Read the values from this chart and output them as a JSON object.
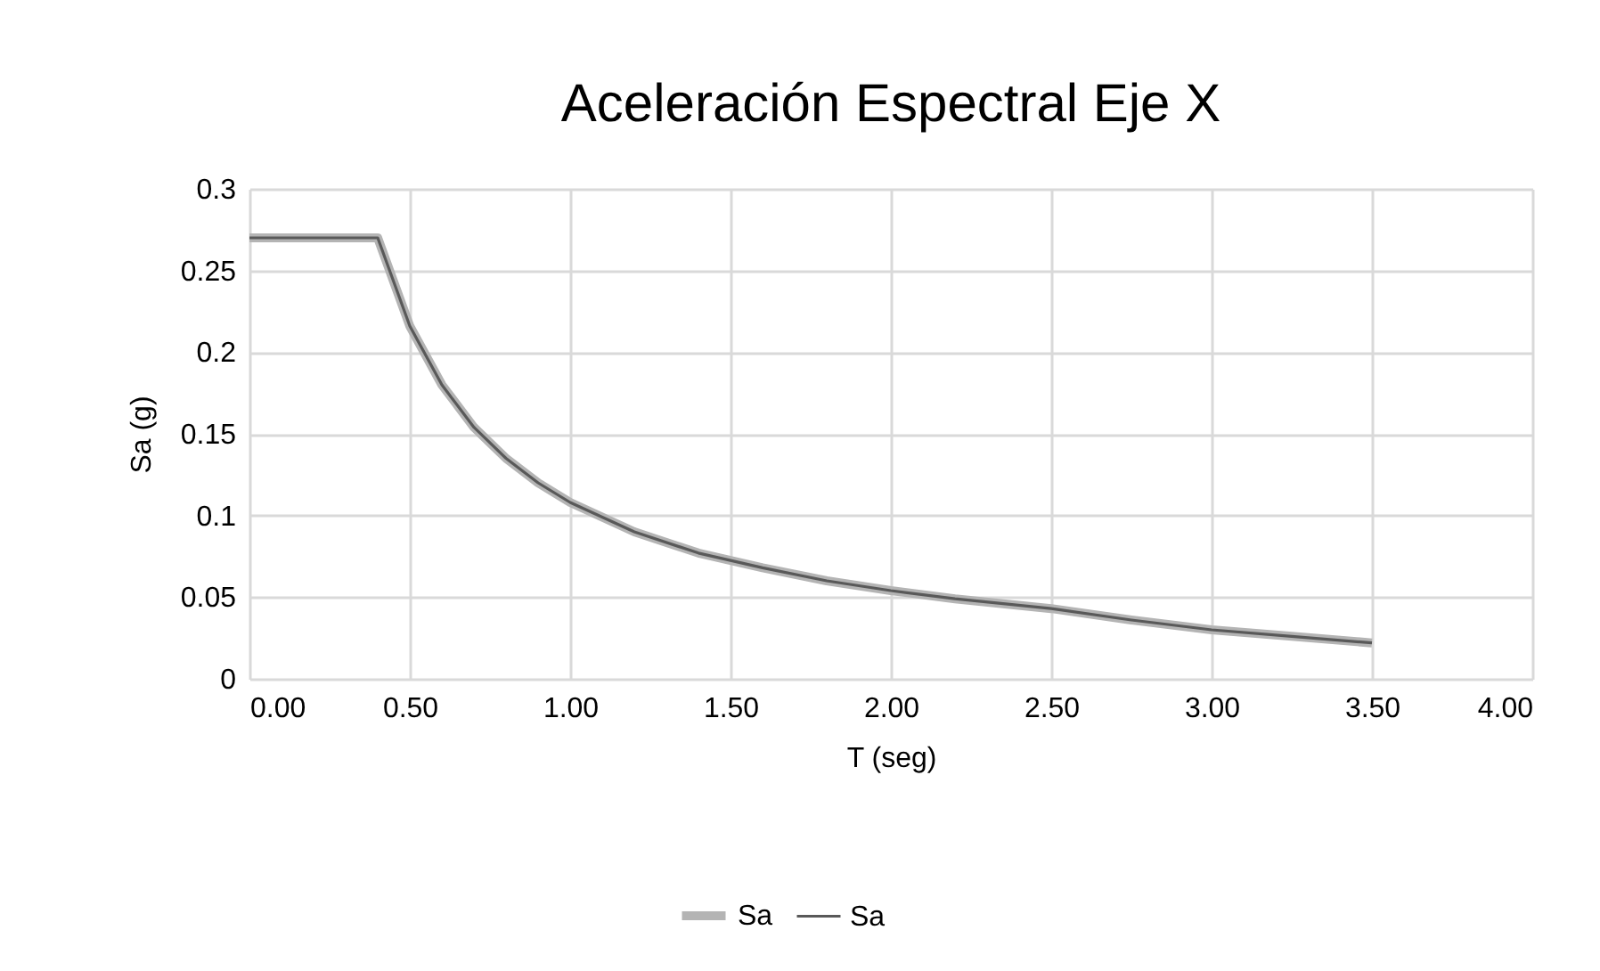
{
  "chart_data": {
    "type": "line",
    "title": "Aceleración Espectral Eje X",
    "xlabel": "T (seg)",
    "ylabel": "Sa (g)",
    "x": [
      0,
      0.4,
      0.5,
      0.6,
      0.7,
      0.8,
      0.9,
      1.0,
      1.2,
      1.4,
      1.6,
      1.8,
      2.0,
      2.2,
      2.5,
      2.75,
      3.0,
      3.25,
      3.5
    ],
    "series": [
      {
        "name": "Sa",
        "color": "#b4b4b4",
        "values": [
          0.27,
          0.27,
          0.216,
          0.18,
          0.154,
          0.135,
          0.12,
          0.108,
          0.09,
          0.077,
          0.068,
          0.06,
          0.054,
          0.049,
          0.043,
          0.036,
          0.03,
          0.026,
          0.022
        ]
      },
      {
        "name": "Sa",
        "color": "#595959",
        "values": [
          0.27,
          0.27,
          0.216,
          0.18,
          0.154,
          0.135,
          0.12,
          0.108,
          0.09,
          0.077,
          0.068,
          0.06,
          0.054,
          0.049,
          0.043,
          0.036,
          0.03,
          0.026,
          0.022
        ]
      }
    ],
    "xlim": [
      0,
      4
    ],
    "xticks": [
      {
        "value": 0,
        "label": "0.00"
      },
      {
        "value": 0.5,
        "label": "0.50"
      },
      {
        "value": 1,
        "label": "1.00"
      },
      {
        "value": 1.5,
        "label": "1.50"
      },
      {
        "value": 2,
        "label": "2.00"
      },
      {
        "value": 2.5,
        "label": "2.50"
      },
      {
        "value": 3,
        "label": "3.00"
      },
      {
        "value": 3.5,
        "label": "3.50"
      },
      {
        "value": 4,
        "label": "4.00"
      }
    ],
    "ylim": [
      0,
      0.3
    ],
    "yticks": [
      0,
      0.05,
      0.1,
      0.15,
      0.2,
      0.25,
      0.3
    ],
    "grid": true,
    "legend": "bottom",
    "marker": "none",
    "line_style": "solid"
  }
}
